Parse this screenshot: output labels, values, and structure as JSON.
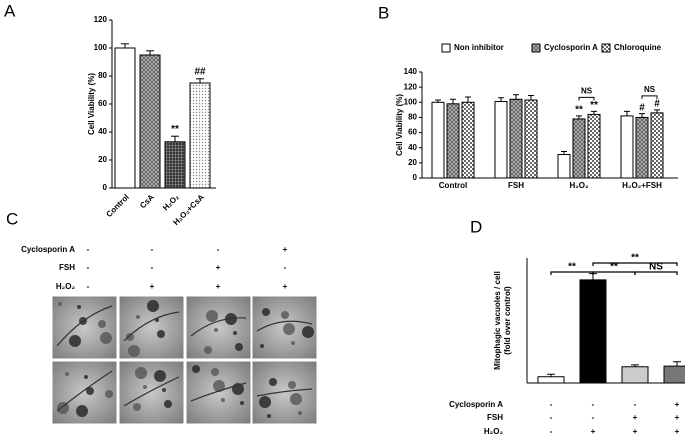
{
  "chart_data": [
    {
      "type": "bar",
      "label": "A",
      "ylabel": "Cell Viability (%)",
      "categories": [
        "Control",
        "CsA",
        "H₂O₂",
        "H₂O₂+CsA"
      ],
      "values": [
        100,
        95,
        33,
        75
      ],
      "errors": [
        3,
        3,
        4,
        3
      ],
      "colors": [
        "#ffffff",
        "#555555",
        "#444444",
        "#dddddd"
      ],
      "patterns": [
        "none",
        "crosshatch",
        "grid",
        "dots"
      ],
      "ylim": [
        0,
        120
      ],
      "yticks": [
        0,
        20,
        40,
        60,
        80,
        100,
        120
      ],
      "annotations": [
        {
          "text": "**",
          "bar": 2
        },
        {
          "text": "##",
          "bar": 3
        }
      ]
    },
    {
      "type": "grouped_bar",
      "label": "B",
      "ylabel": "Cell Viability (%)",
      "categories": [
        "Control",
        "FSH",
        "H₂O₂",
        "H₂O₂+FSH"
      ],
      "series": [
        {
          "name": "Non inhibitor",
          "color": "#ffffff",
          "pattern": "none",
          "values": [
            100,
            101,
            31,
            82
          ],
          "errors": [
            3,
            5,
            4,
            6
          ]
        },
        {
          "name": "Cyclosporin A",
          "color": "#555555",
          "pattern": "crosshatch",
          "values": [
            98,
            104,
            78,
            80
          ],
          "errors": [
            6,
            6,
            4,
            5
          ]
        },
        {
          "name": "Chloroquine",
          "color": "#dddddd",
          "pattern": "checker",
          "values": [
            100,
            103,
            84,
            86
          ],
          "errors": [
            7,
            6,
            4,
            4
          ]
        }
      ],
      "ylim": [
        0,
        140
      ],
      "yticks": [
        0,
        20,
        40,
        60,
        80,
        100,
        120,
        140
      ],
      "legend": "top",
      "annotations": [
        {
          "text": "**",
          "category": 2,
          "series": 1
        },
        {
          "text": "**",
          "category": 2,
          "series": 2
        },
        {
          "text": "#",
          "category": 3,
          "series": 1
        },
        {
          "text": "#",
          "category": 3,
          "series": 2
        }
      ],
      "brackets": [
        {
          "text": "NS",
          "category": 2,
          "from": 1,
          "to": 2
        },
        {
          "text": "NS",
          "category": 3,
          "from": 1,
          "to": 2
        }
      ]
    },
    {
      "type": "image_grid",
      "label": "C",
      "rows": [
        {
          "name": "Cyclosporin A",
          "signs": [
            "-",
            "-",
            "-",
            "+"
          ]
        },
        {
          "name": "FSH",
          "signs": [
            "-",
            "-",
            "+",
            "-"
          ]
        },
        {
          "name": "H₂O₂",
          "signs": [
            "-",
            "+",
            "+",
            "+"
          ]
        }
      ]
    },
    {
      "type": "bar",
      "label": "D",
      "ylabel": [
        "Mitophagic vacuoles / cell",
        "(fold over control)"
      ],
      "categories": [
        null,
        null,
        null,
        null
      ],
      "values": [
        1,
        16.5,
        2.6,
        2.7
      ],
      "errors": [
        0.4,
        1,
        0.3,
        0.7
      ],
      "colors": [
        "#ffffff",
        "#000000",
        "#cccccc",
        "#777777"
      ],
      "patterns": [
        "none",
        "none",
        "none",
        "none"
      ],
      "ylim": [
        0,
        20
      ],
      "brackets": [
        {
          "text": "**",
          "from": 0,
          "to": 1
        },
        {
          "text": "**",
          "from": 1,
          "to": 2
        },
        {
          "text": "NS",
          "from": 2,
          "to": 3
        },
        {
          "text": "**",
          "from": 1,
          "to": 3
        }
      ],
      "conditions": [
        {
          "name": "Cyclosporin A",
          "signs": [
            "-",
            "-",
            "-",
            "+"
          ]
        },
        {
          "name": "FSH",
          "signs": [
            "-",
            "-",
            "+",
            "+"
          ]
        },
        {
          "name": "H₂O₂",
          "signs": [
            "-",
            "+",
            "+",
            "+"
          ]
        }
      ]
    }
  ]
}
